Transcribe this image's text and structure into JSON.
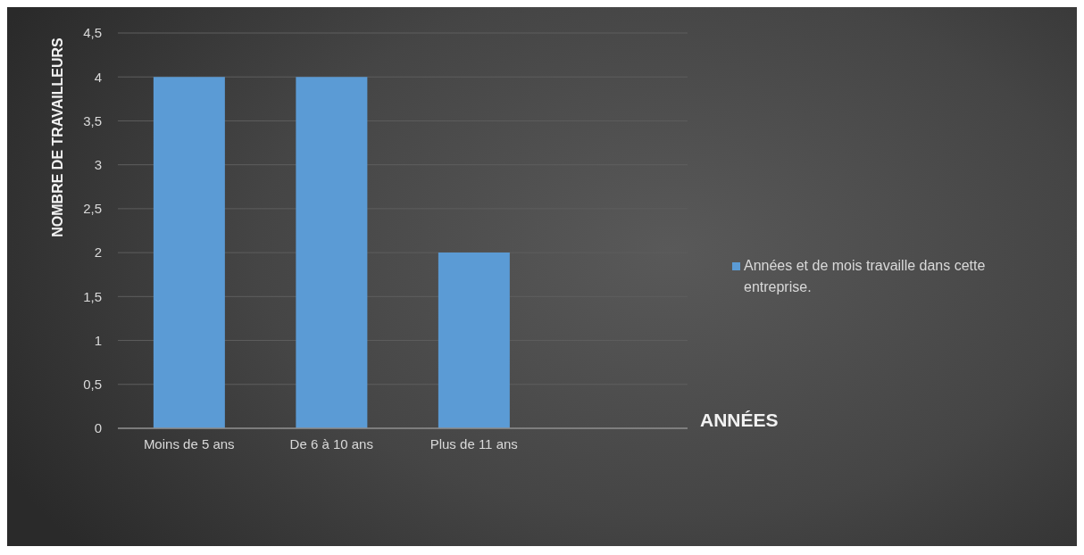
{
  "chart_data": {
    "type": "bar",
    "categories": [
      "Moins de 5 ans",
      "De 6 à 10 ans",
      "Plus de 11 ans",
      null
    ],
    "series": [
      {
        "name": "Années et de mois travaille dans cette entreprise.",
        "color": "#5b9bd5",
        "values": [
          4,
          4,
          2,
          null
        ]
      }
    ],
    "xlabel": "ANNÉES",
    "ylabel": "NOMBRE DE TRAVAILLEURS",
    "ylim": [
      0,
      4.5
    ],
    "yticks": [
      0,
      {
        "value": 0.5,
        "label": "0,5"
      },
      1,
      {
        "value": 1.5,
        "label": "1,5"
      },
      2,
      {
        "value": 2.5,
        "label": "2,5"
      },
      3,
      {
        "value": 3.5,
        "label": "3,5"
      },
      4,
      {
        "value": 4.5,
        "label": "4,5"
      }
    ],
    "grid": "y",
    "legend": "right"
  }
}
